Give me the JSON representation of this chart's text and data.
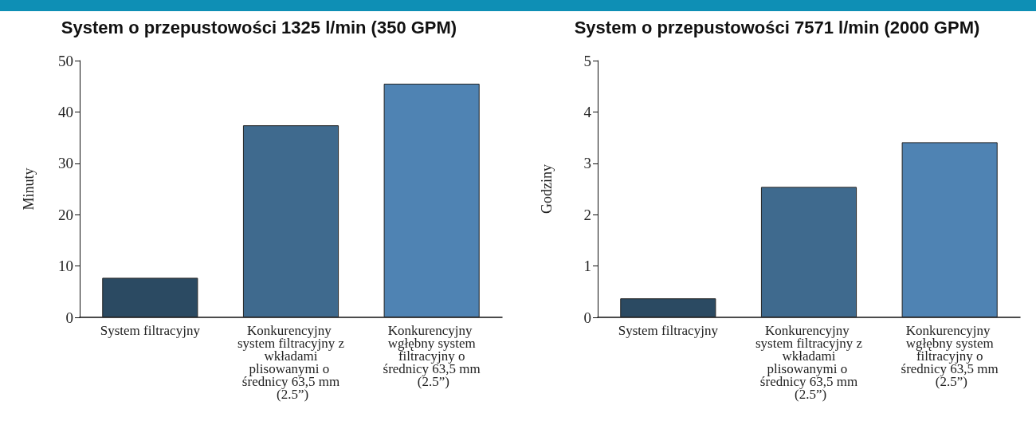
{
  "chart_data": [
    {
      "type": "bar",
      "title": "System o przepustowości 1325 l/min (350 GPM)",
      "ylabel": "Minuty",
      "categories": [
        "System filtracyjny",
        "Konkurencyjny system filtracyjny z wkładami plisowanymi o średnicy 63,5 mm (2.5”)",
        "Konkurencyjny wgłębny system filtracyjny o średnicy 63,5 mm (2.5”)"
      ],
      "values": [
        7.7,
        37.4,
        45.5
      ],
      "colors": [
        "#2b4a62",
        "#3f6a8e",
        "#4f83b3"
      ],
      "ylim": [
        0,
        50
      ],
      "yticks": [
        0,
        10,
        20,
        30,
        40,
        50
      ]
    },
    {
      "type": "bar",
      "title": "System o przepustowości 7571 l/min (2000 GPM)",
      "ylabel": "Godziny",
      "categories": [
        "System filtracyjny",
        "Konkurencyjny system filtracyjny z wkładami plisowanymi o średnicy 63,5 mm (2.5”)",
        "Konkurencyjny wgłębny system filtracyjny o średnicy 63,5 mm (2.5”)"
      ],
      "values": [
        0.37,
        2.54,
        3.41
      ],
      "colors": [
        "#2b4a62",
        "#3f6a8e",
        "#4f83b3"
      ],
      "ylim": [
        0,
        5
      ],
      "yticks": [
        0,
        1,
        2,
        3,
        4,
        5
      ]
    }
  ]
}
